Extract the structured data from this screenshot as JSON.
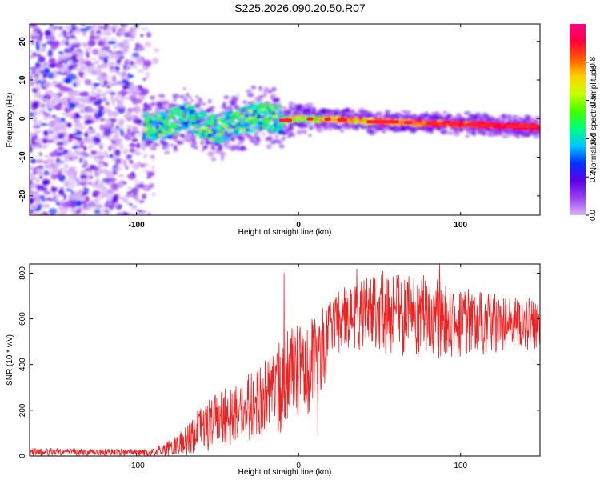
{
  "title": "S225.2026.090.20.50.R07",
  "chart_data": [
    {
      "type": "heatmap",
      "name": "spectrogram",
      "xlabel": "Height of straight line (km)",
      "ylabel": "Frequency (Hz)",
      "xlim": [
        -166,
        149
      ],
      "ylim": [
        -25,
        24.5
      ],
      "x_ticks": [
        -100,
        0,
        100
      ],
      "y_ticks": [
        -20,
        -10,
        0,
        10,
        20
      ],
      "noise_region_x": [
        -166,
        -82
      ],
      "signal_start_x": -95,
      "center_frequency_track": [
        {
          "x": -95,
          "y": -2
        },
        {
          "x": -80,
          "y": -1.5
        },
        {
          "x": -70,
          "y": 0.5
        },
        {
          "x": -60,
          "y": -1.5
        },
        {
          "x": -50,
          "y": -3
        },
        {
          "x": -40,
          "y": -1
        },
        {
          "x": -30,
          "y": 0
        },
        {
          "x": -20,
          "y": 0.5
        },
        {
          "x": -10,
          "y": -0.5
        },
        {
          "x": 0,
          "y": 0
        },
        {
          "x": 20,
          "y": -0.2
        },
        {
          "x": 50,
          "y": -0.8
        },
        {
          "x": 80,
          "y": -1.2
        },
        {
          "x": 110,
          "y": -1.6
        },
        {
          "x": 149,
          "y": -2.2
        }
      ],
      "colorbar": {
        "label": "Normalized spectral amplitude",
        "range": [
          0,
          1
        ],
        "ticks": [
          0.0,
          0.2,
          0.4,
          0.6,
          0.8
        ],
        "tick_labels": [
          "0.0",
          "0.2",
          "0.4",
          "0.6",
          "0.8"
        ],
        "colors": [
          "#ffffff",
          "#d6b4f4",
          "#9b40f0",
          "#5a00e6",
          "#0033ff",
          "#00c8ff",
          "#00ff7a",
          "#44ff00",
          "#c8ff00",
          "#ffd000",
          "#ff5a00",
          "#ff0040",
          "#ff0088"
        ]
      }
    },
    {
      "type": "line",
      "name": "snr",
      "xlabel": "Height of straight line (km)",
      "ylabel": "SNR (10 * v/v)",
      "xlim": [
        -166,
        149
      ],
      "ylim": [
        0,
        840
      ],
      "x_ticks": [
        -100,
        0,
        100
      ],
      "y_ticks": [
        0,
        200,
        400,
        600,
        800
      ],
      "series_color": "#ee2222",
      "envelope": [
        {
          "x": -166,
          "low": 0,
          "high": 35
        },
        {
          "x": -90,
          "low": 0,
          "high": 30
        },
        {
          "x": -80,
          "low": 0,
          "high": 70
        },
        {
          "x": -70,
          "low": 0,
          "high": 130
        },
        {
          "x": -60,
          "low": 10,
          "high": 220
        },
        {
          "x": -50,
          "low": 30,
          "high": 280
        },
        {
          "x": -40,
          "low": 40,
          "high": 320
        },
        {
          "x": -30,
          "low": 60,
          "high": 370
        },
        {
          "x": -20,
          "low": 80,
          "high": 420
        },
        {
          "x": -10,
          "low": 100,
          "high": 520
        },
        {
          "x": 0,
          "low": 180,
          "high": 600
        },
        {
          "x": 10,
          "low": 150,
          "high": 620
        },
        {
          "x": 20,
          "low": 420,
          "high": 700
        },
        {
          "x": 30,
          "low": 460,
          "high": 760
        },
        {
          "x": 50,
          "low": 450,
          "high": 800
        },
        {
          "x": 80,
          "low": 420,
          "high": 790
        },
        {
          "x": 110,
          "low": 440,
          "high": 720
        },
        {
          "x": 149,
          "low": 470,
          "high": 690
        }
      ],
      "spikes": [
        {
          "x": -9,
          "y": 800
        },
        {
          "x": 12,
          "y": 90
        },
        {
          "x": 36,
          "y": 820
        },
        {
          "x": 52,
          "y": 810
        },
        {
          "x": 87,
          "y": 840
        }
      ]
    }
  ]
}
